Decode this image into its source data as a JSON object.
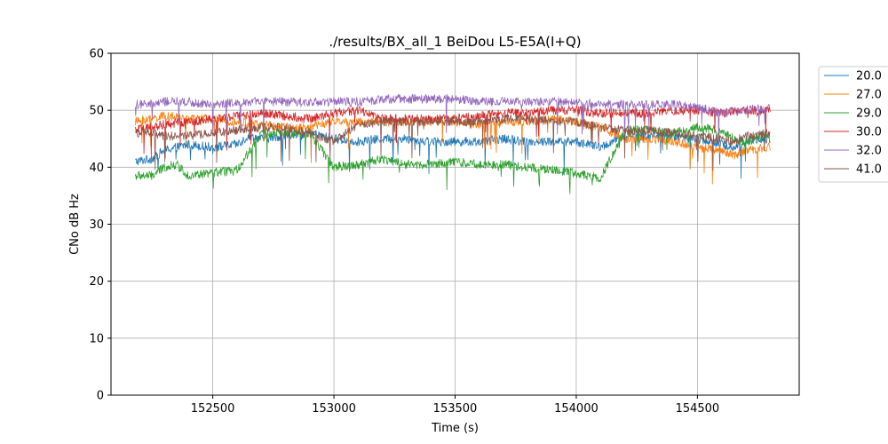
{
  "chart_data": {
    "type": "line",
    "title": "./results/BX_all_1 BeiDou L5-E5A(I+Q)",
    "xlabel": "Time (s)",
    "ylabel": "CNo dB Hz",
    "xlim": [
      152080,
      154920
    ],
    "ylim": [
      0,
      60
    ],
    "xticks": [
      "152500",
      "153000",
      "153500",
      "154000",
      "154500"
    ],
    "yticks": [
      "0",
      "10",
      "20",
      "30",
      "40",
      "50",
      "60"
    ],
    "grid": true,
    "legend_position": "outside right, top",
    "series": [
      {
        "name": "20.0",
        "color": "#1f77b4",
        "x": [
          152180,
          152250,
          152300,
          152400,
          152500,
          152600,
          152650,
          152700,
          152800,
          152900,
          153000,
          153100,
          153200,
          153300,
          153400,
          153500,
          153600,
          153700,
          153800,
          153900,
          154000,
          154050,
          154100,
          154200,
          154300,
          154400,
          154500,
          154600,
          154650,
          154700,
          154800
        ],
        "y": [
          41,
          41.5,
          43,
          44,
          43.5,
          44,
          45.5,
          45,
          45.5,
          46,
          45,
          44.5,
          45,
          45,
          44.5,
          44.5,
          44.5,
          45,
          44.5,
          44.5,
          44.5,
          44,
          43.5,
          45.5,
          45.5,
          45.5,
          45,
          44,
          43.5,
          44.5,
          45
        ]
      },
      {
        "name": "27.0",
        "color": "#ff7f0e",
        "x": [
          152180,
          152250,
          152300,
          152400,
          152500,
          152600,
          152700,
          152800,
          152900,
          153000,
          153100,
          153200,
          153300,
          153400,
          153500,
          153600,
          153700,
          153800,
          153900,
          154000,
          154100,
          154200,
          154300,
          154400,
          154500,
          154600,
          154650,
          154700,
          154800
        ],
        "y": [
          48,
          48.5,
          49,
          48.5,
          48.5,
          48,
          47.5,
          47,
          47,
          48,
          48,
          48,
          48,
          48,
          48,
          47.5,
          48,
          48,
          48.5,
          48,
          47,
          45,
          45,
          44.5,
          43.5,
          43,
          42,
          43,
          43.5
        ]
      },
      {
        "name": "29.0",
        "color": "#2ca02c",
        "x": [
          152180,
          152250,
          152300,
          152350,
          152400,
          152500,
          152600,
          152700,
          152800,
          152900,
          153000,
          153100,
          153200,
          153300,
          153400,
          153500,
          153600,
          153700,
          153800,
          153900,
          154000,
          154100,
          154200,
          154300,
          154400,
          154500,
          154600,
          154650,
          154700,
          154800
        ],
        "y": [
          38.5,
          38.5,
          40,
          40.5,
          38.5,
          39,
          39.5,
          46,
          46,
          46,
          40,
          40.5,
          41.5,
          40.5,
          40.5,
          41,
          40.5,
          40.5,
          40,
          39.5,
          39,
          38,
          46.5,
          46.5,
          46,
          47,
          46.5,
          45,
          44.5,
          46
        ]
      },
      {
        "name": "30.0",
        "color": "#d62728",
        "x": [
          152180,
          152250,
          152300,
          152400,
          152500,
          152600,
          152700,
          152800,
          152900,
          153000,
          153100,
          153200,
          153300,
          153400,
          153500,
          153600,
          153700,
          153800,
          153900,
          154000,
          154100,
          154200,
          154300,
          154400,
          154500,
          154600,
          154700,
          154800
        ],
        "y": [
          46.5,
          47,
          47.5,
          48,
          48.5,
          49,
          49.5,
          49,
          48.5,
          49.5,
          50,
          48.5,
          48.5,
          48.5,
          48.5,
          49,
          49.5,
          49.5,
          50,
          50,
          49.5,
          49.5,
          49.5,
          50,
          50,
          49.5,
          50,
          50
        ]
      },
      {
        "name": "32.0",
        "color": "#9467bd",
        "x": [
          152180,
          152250,
          152300,
          152400,
          152500,
          152600,
          152700,
          152800,
          152900,
          153000,
          153100,
          153200,
          153300,
          153400,
          153500,
          153600,
          153700,
          153800,
          153900,
          154000,
          154100,
          154200,
          154300,
          154400,
          154500,
          154600,
          154700,
          154800
        ],
        "y": [
          51,
          51,
          51.5,
          51.5,
          51,
          51.5,
          51.5,
          51.5,
          51.5,
          51.5,
          51.5,
          52,
          52,
          52,
          52,
          51.5,
          51.5,
          51.5,
          51.5,
          51.5,
          51,
          51,
          51,
          51,
          50.5,
          49.5,
          50,
          50.5
        ]
      },
      {
        "name": "41.0",
        "color": "#8c564b",
        "x": [
          152180,
          152250,
          152300,
          152400,
          152500,
          152600,
          152700,
          152800,
          152900,
          153000,
          153100,
          153200,
          153300,
          153400,
          153500,
          153600,
          153700,
          153800,
          153900,
          154000,
          154100,
          154200,
          154300,
          154400,
          154500,
          154600,
          154650,
          154700,
          154800
        ],
        "y": [
          46,
          46,
          45.5,
          45.5,
          46,
          46.5,
          47,
          47,
          46,
          44.5,
          47.5,
          48,
          48,
          48,
          48,
          48,
          48.5,
          48.5,
          48,
          48,
          47,
          46.5,
          46.5,
          46,
          45.5,
          45,
          44.5,
          45.5,
          46
        ]
      }
    ]
  }
}
